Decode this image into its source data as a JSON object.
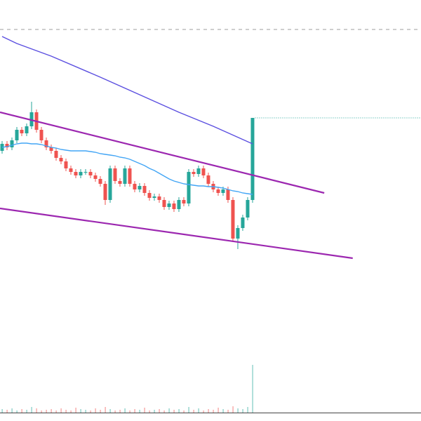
{
  "chart_data": {
    "type": "candlestick",
    "xlim": [
      -0.43,
      85.3
    ],
    "ylim": [
      0,
      590
    ],
    "volume_ylim": [
      0,
      70
    ],
    "up_color": "#26a69a",
    "down_color": "#ef5350",
    "open": [
      375,
      385,
      380,
      390,
      405,
      400,
      410,
      430,
      405,
      390,
      380,
      375,
      365,
      360,
      350,
      345,
      340,
      345,
      345,
      340,
      335,
      328,
      305,
      350,
      332,
      328,
      350,
      328,
      320,
      325,
      315,
      308,
      310,
      305,
      295,
      300,
      292,
      305,
      300,
      345,
      342,
      350,
      340,
      328,
      320,
      315,
      320,
      305,
      250,
      265,
      280,
      305
    ],
    "high": [
      389,
      389,
      394,
      409,
      409,
      414,
      445,
      434,
      409,
      394,
      384,
      379,
      369,
      364,
      354,
      349,
      349,
      349,
      349,
      344,
      339,
      332,
      354,
      354,
      336,
      354,
      354,
      332,
      329,
      329,
      319,
      314,
      314,
      309,
      304,
      304,
      309,
      309,
      349,
      349,
      354,
      354,
      344,
      332,
      324,
      324,
      324,
      309,
      269,
      284,
      309,
      422
    ],
    "low": [
      371,
      376,
      376,
      386,
      396,
      396,
      406,
      401,
      386,
      376,
      371,
      361,
      356,
      346,
      341,
      336,
      336,
      341,
      336,
      331,
      324,
      298,
      301,
      328,
      324,
      324,
      324,
      316,
      316,
      311,
      304,
      304,
      301,
      291,
      291,
      288,
      288,
      296,
      296,
      338,
      338,
      336,
      324,
      316,
      311,
      311,
      301,
      245,
      235,
      261,
      276,
      301
    ],
    "close": [
      385,
      380,
      390,
      405,
      400,
      410,
      430,
      405,
      390,
      380,
      375,
      365,
      360,
      350,
      345,
      340,
      345,
      345,
      340,
      335,
      328,
      305,
      350,
      332,
      328,
      350,
      328,
      320,
      325,
      315,
      308,
      310,
      305,
      295,
      300,
      292,
      305,
      300,
      345,
      342,
      350,
      340,
      328,
      320,
      315,
      320,
      305,
      250,
      265,
      280,
      305,
      422
    ],
    "volume": [
      5,
      4,
      6,
      3,
      5,
      4,
      8,
      6,
      3,
      4,
      5,
      3,
      6,
      4,
      3,
      7,
      5,
      4,
      3,
      6,
      4,
      8,
      5,
      3,
      4,
      6,
      3,
      5,
      4,
      7,
      3,
      4,
      5,
      3,
      6,
      4,
      5,
      3,
      8,
      4,
      6,
      3,
      5,
      4,
      7,
      5,
      4,
      9,
      6,
      5,
      8,
      68
    ],
    "series": [
      {
        "color": "#42a5f5",
        "values": [
          380,
          381,
          383,
          385,
          386,
          386,
          385,
          385,
          384,
          382,
          380,
          379,
          377,
          376,
          375,
          375,
          375,
          375,
          374,
          373,
          371,
          370,
          369,
          368,
          366,
          365,
          363,
          360,
          357,
          354,
          350,
          347,
          343,
          339,
          335,
          332,
          330,
          328,
          327,
          326,
          325,
          325,
          324,
          324,
          323,
          322,
          320,
          318,
          317,
          315,
          314,
          313
        ]
      },
      {
        "color": "#5b4fe0",
        "x": [
          0,
          3,
          10,
          20,
          28,
          36,
          43,
          51
        ],
        "values": [
          538,
          528,
          510,
          480,
          455,
          430,
          410,
          385
        ]
      }
    ],
    "trendlines": [
      {
        "color": "#9c27b0",
        "x": [
          -0.43,
          65.6
        ],
        "values": [
          430,
          315
        ]
      },
      {
        "color": "#9c27b0",
        "x": [
          -0.43,
          71.4
        ],
        "values": [
          293,
          222
        ]
      }
    ],
    "hlines": [
      {
        "value": 548,
        "color": "#9e9e9e",
        "style": "dashed"
      },
      {
        "value": 422,
        "color": "#26a69a",
        "style": "dotted",
        "from": 51.5
      }
    ]
  }
}
